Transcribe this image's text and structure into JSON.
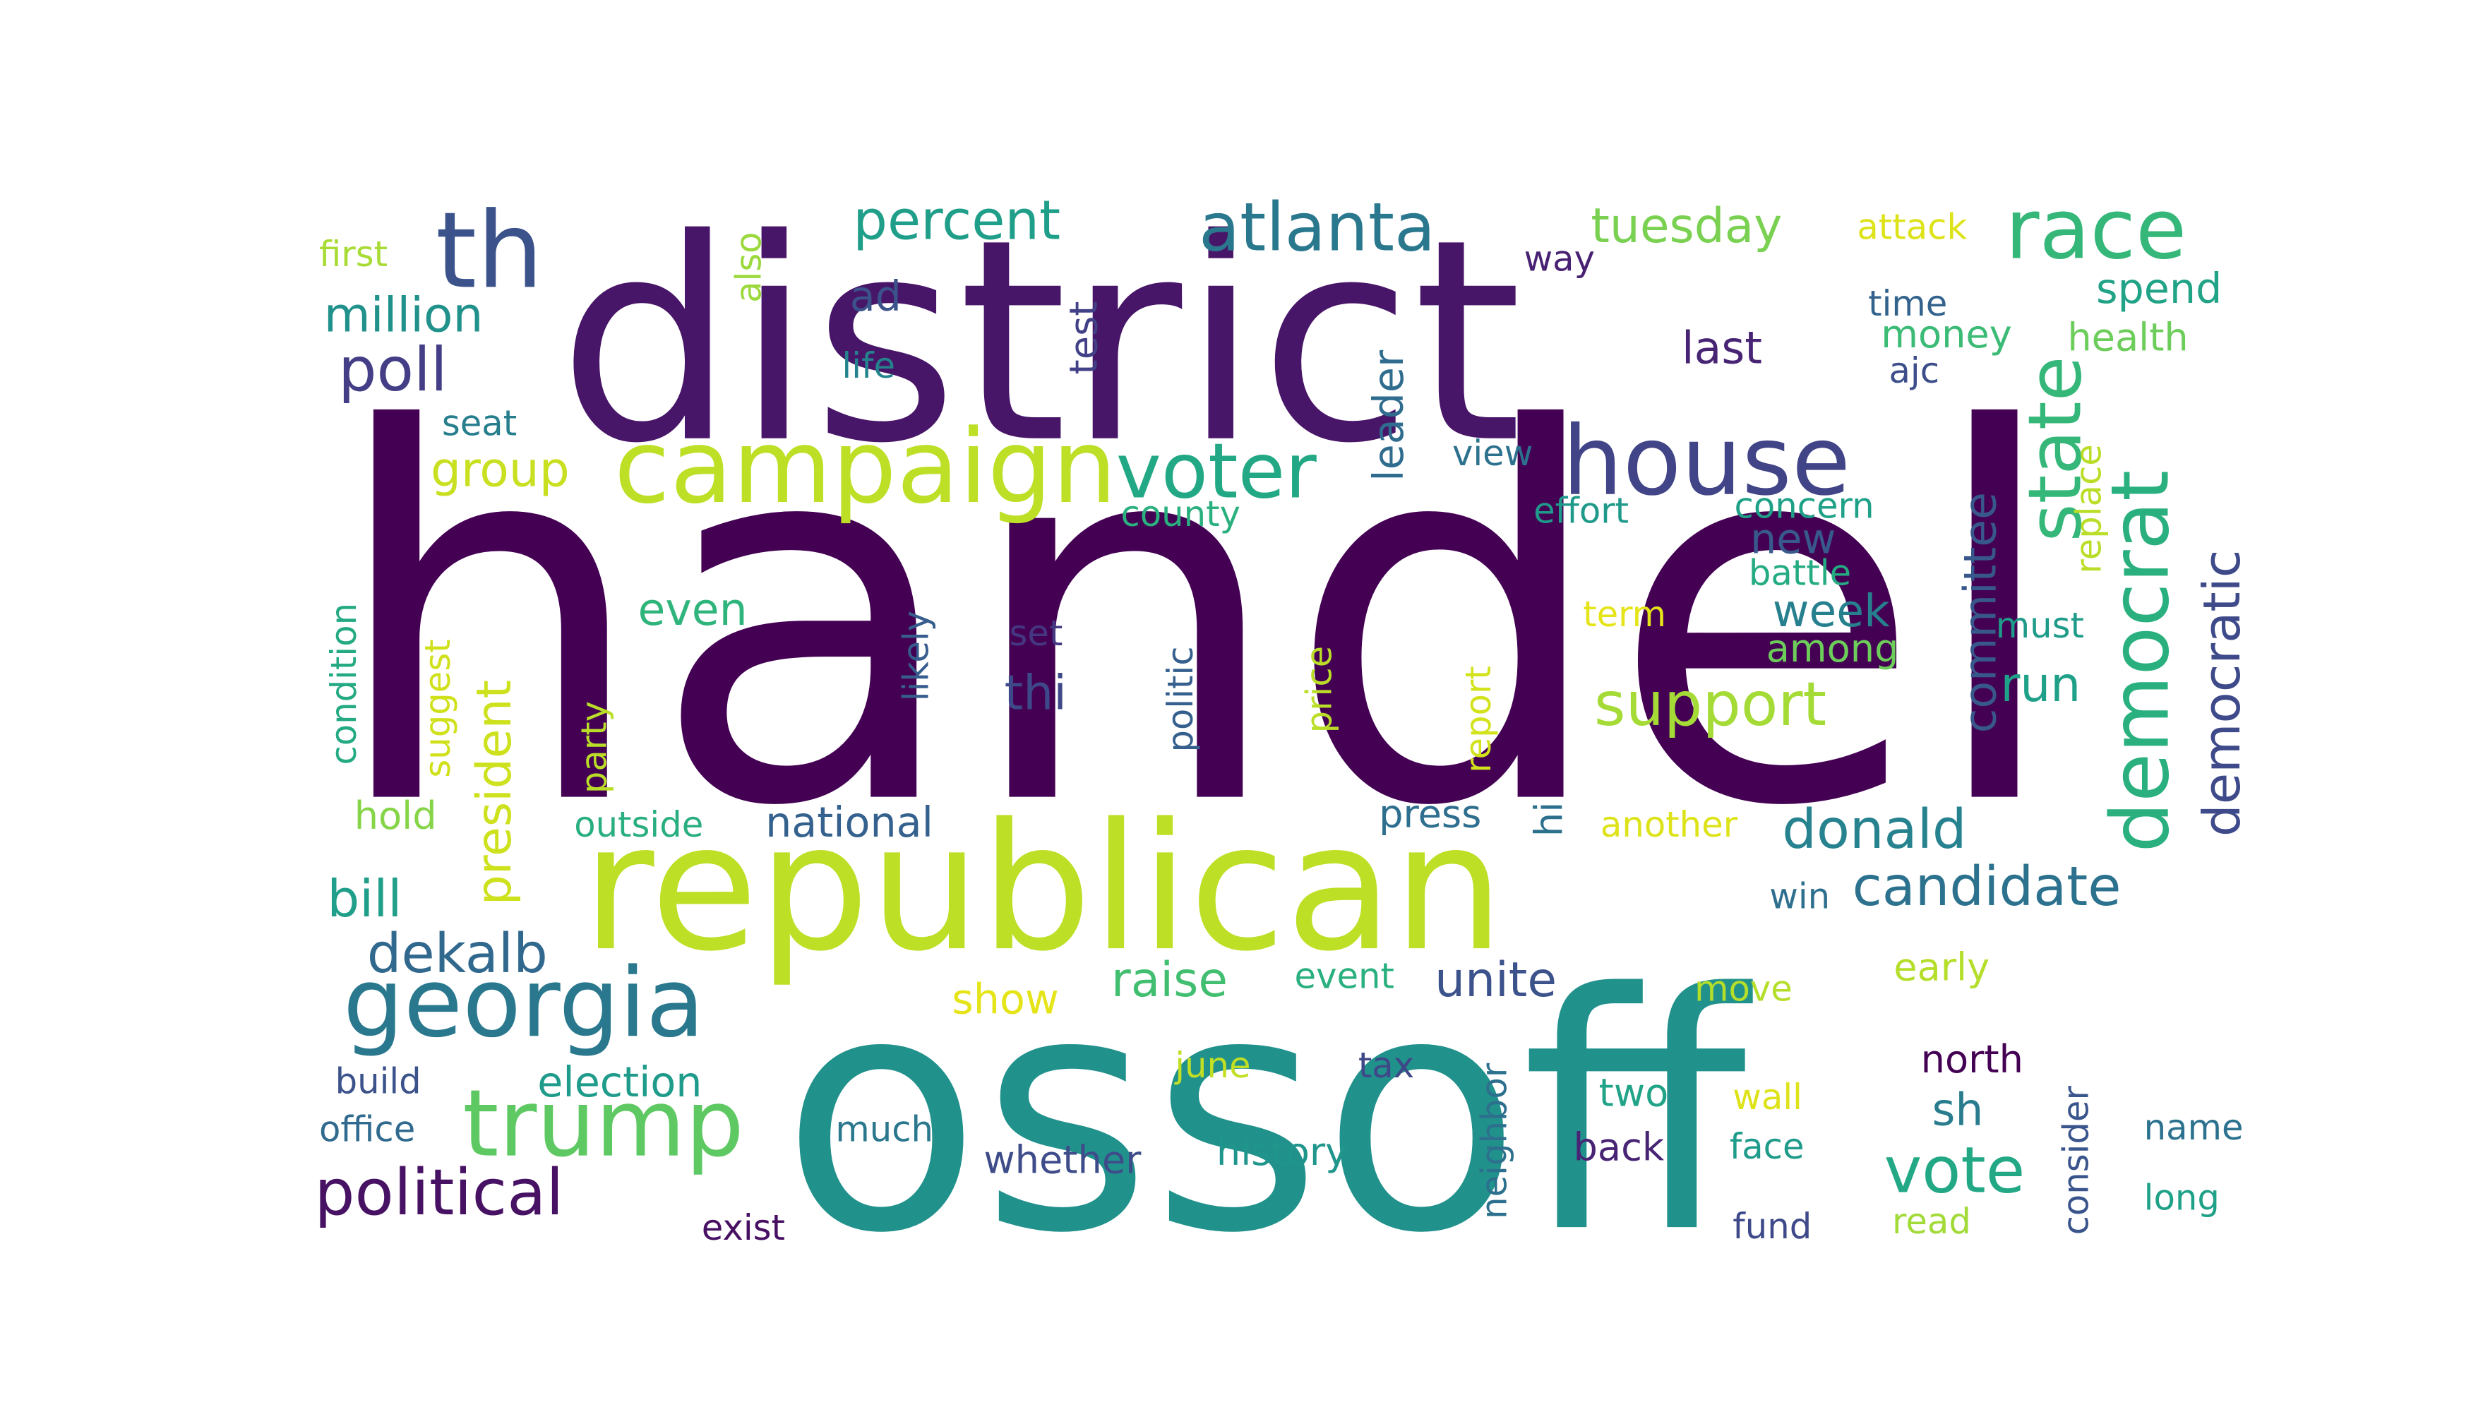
{
  "words": [
    {
      "text": "handel",
      "color": "#440154"
    },
    {
      "text": "district",
      "color": "#481668"
    },
    {
      "text": "ossoff",
      "color": "#21918c"
    },
    {
      "text": "republican",
      "color": "#bddf26"
    },
    {
      "text": "campaign",
      "color": "#bddf26"
    },
    {
      "text": "georgia",
      "color": "#2a788e"
    },
    {
      "text": "house",
      "color": "#414487"
    },
    {
      "text": "trump",
      "color": "#5ec962"
    },
    {
      "text": "race",
      "color": "#35b779"
    },
    {
      "text": "th",
      "color": "#3b528b"
    },
    {
      "text": "voter",
      "color": "#22a884"
    },
    {
      "text": "democrat",
      "color": "#2ab07f"
    },
    {
      "text": "state",
      "color": "#35b779"
    },
    {
      "text": "atlanta",
      "color": "#2a788e"
    },
    {
      "text": "political",
      "color": "#471164"
    },
    {
      "text": "percent",
      "color": "#1f9e89"
    },
    {
      "text": "poll",
      "color": "#433e85"
    },
    {
      "text": "support",
      "color": "#a5db36"
    },
    {
      "text": "candidate",
      "color": "#2c728e"
    },
    {
      "text": "vote",
      "color": "#22a884"
    },
    {
      "text": "donald",
      "color": "#26828e"
    },
    {
      "text": "dekalb",
      "color": "#31688e"
    },
    {
      "text": "democratic",
      "color": "#3e4a89"
    },
    {
      "text": "tuesday",
      "color": "#7ad151"
    },
    {
      "text": "million",
      "color": "#21918c"
    },
    {
      "text": "committee",
      "color": "#38588c"
    },
    {
      "text": "president",
      "color": "#cde11d"
    },
    {
      "text": "group",
      "color": "#c8e020"
    },
    {
      "text": "bill",
      "color": "#1f9e89"
    },
    {
      "text": "unite",
      "color": "#3b528b"
    },
    {
      "text": "raise",
      "color": "#42be71"
    },
    {
      "text": "thi",
      "color": "#3e4989"
    },
    {
      "text": "even",
      "color": "#2fb47c"
    },
    {
      "text": "run",
      "color": "#1fa088"
    },
    {
      "text": "week",
      "color": "#27808e"
    },
    {
      "text": "last",
      "color": "#482475"
    },
    {
      "text": "spend",
      "color": "#20a386"
    },
    {
      "text": "health",
      "color": "#6ccd5a"
    },
    {
      "text": "money",
      "color": "#3bbb75"
    },
    {
      "text": "election",
      "color": "#1e9b8a"
    },
    {
      "text": "sh",
      "color": "#287c8e"
    },
    {
      "text": "first",
      "color": "#a8db34"
    },
    {
      "text": "attack",
      "color": "#dde318"
    },
    {
      "text": "way",
      "color": "#482173"
    },
    {
      "text": "time",
      "color": "#33638d"
    },
    {
      "text": "ajc",
      "color": "#3d4e8a"
    },
    {
      "text": "also",
      "color": "#9bd93c"
    },
    {
      "text": "test",
      "color": "#424086"
    },
    {
      "text": "ad",
      "color": "#3b528b"
    },
    {
      "text": "life",
      "color": "#25838e"
    },
    {
      "text": "seat",
      "color": "#277f8e"
    },
    {
      "text": "leader",
      "color": "#2f6c8e"
    },
    {
      "text": "view",
      "color": "#2c718e"
    },
    {
      "text": "county",
      "color": "#2ab07f"
    },
    {
      "text": "effort",
      "color": "#1f9a8a"
    },
    {
      "text": "concern",
      "color": "#1fa188"
    },
    {
      "text": "new",
      "color": "#38598c"
    },
    {
      "text": "battle",
      "color": "#25ab82"
    },
    {
      "text": "replace",
      "color": "#bade28"
    },
    {
      "text": "must",
      "color": "#1e9c89"
    },
    {
      "text": "among",
      "color": "#6ccd5a"
    },
    {
      "text": "term",
      "color": "#e5e419"
    },
    {
      "text": "set",
      "color": "#453781"
    },
    {
      "text": "likely",
      "color": "#365d8d"
    },
    {
      "text": "politic",
      "color": "#355f8d"
    },
    {
      "text": "price",
      "color": "#bade28"
    },
    {
      "text": "report",
      "color": "#d2e21b"
    },
    {
      "text": "condition",
      "color": "#24aa83"
    },
    {
      "text": "suggest",
      "color": "#d0e11c"
    },
    {
      "text": "party",
      "color": "#bade28"
    },
    {
      "text": "hold",
      "color": "#86d549"
    },
    {
      "text": "outside",
      "color": "#29af7f"
    },
    {
      "text": "national",
      "color": "#34618d"
    },
    {
      "text": "press",
      "color": "#2e6e8e"
    },
    {
      "text": "hi",
      "color": "#2d708e"
    },
    {
      "text": "another",
      "color": "#dde318"
    },
    {
      "text": "win",
      "color": "#2e6f8e"
    },
    {
      "text": "show",
      "color": "#e5e419"
    },
    {
      "text": "event",
      "color": "#2ab07f"
    },
    {
      "text": "move",
      "color": "#b5de2b"
    },
    {
      "text": "early",
      "color": "#b5de2b"
    },
    {
      "text": "north",
      "color": "#440154"
    },
    {
      "text": "june",
      "color": "#c2df23"
    },
    {
      "text": "tax",
      "color": "#3f4788"
    },
    {
      "text": "neighbor",
      "color": "#2d708e"
    },
    {
      "text": "two",
      "color": "#20a386"
    },
    {
      "text": "wall",
      "color": "#dde318"
    },
    {
      "text": "consider",
      "color": "#3a548c"
    },
    {
      "text": "name",
      "color": "#2c728e"
    },
    {
      "text": "build",
      "color": "#3b528b"
    },
    {
      "text": "office",
      "color": "#306a8e"
    },
    {
      "text": "much",
      "color": "#2a778e"
    },
    {
      "text": "whether",
      "color": "#3e4c8a"
    },
    {
      "text": "history",
      "color": "#1f958b"
    },
    {
      "text": "back",
      "color": "#482475"
    },
    {
      "text": "face",
      "color": "#1e9b8a"
    },
    {
      "text": "long",
      "color": "#1fa188"
    },
    {
      "text": "exist",
      "color": "#471063"
    },
    {
      "text": "fund",
      "color": "#3e4989"
    },
    {
      "text": "read",
      "color": "#a2da37"
    }
  ]
}
